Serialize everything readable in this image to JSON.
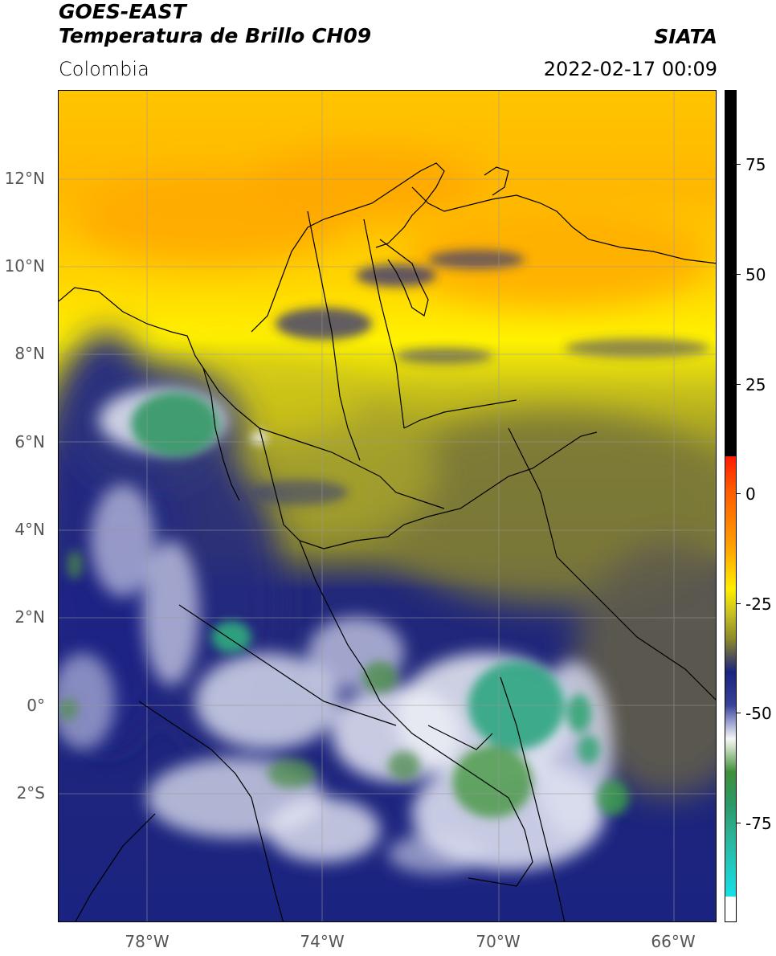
{
  "header": {
    "title_line1": "GOES-EAST",
    "title_line2": "Temperatura de Brillo CH09",
    "agency": "SIATA",
    "region": "Colombia",
    "datetime": "2022-02-17 00:09"
  },
  "axes": {
    "lat_ticks": [
      "12°N",
      "10°N",
      "8°N",
      "6°N",
      "4°N",
      "2°N",
      "0°",
      "2°S"
    ],
    "lon_ticks": [
      "78°W",
      "74°W",
      "70°W",
      "66°W"
    ]
  },
  "colorbar": {
    "labels": [
      "75",
      "50",
      "25",
      "0",
      "-25",
      "-50",
      "-75"
    ],
    "colors": {
      "black": "#000000",
      "red": "#ff1a00",
      "orange": "#ffa200",
      "yellow": "#ffee00",
      "olive": "#8c8a2a",
      "gray": "#555555",
      "navy": "#1a237e",
      "white": "#f5f5f5",
      "green": "#3f8f3a",
      "teal": "#2bb59a",
      "cyan": "#16e0e8"
    }
  }
}
